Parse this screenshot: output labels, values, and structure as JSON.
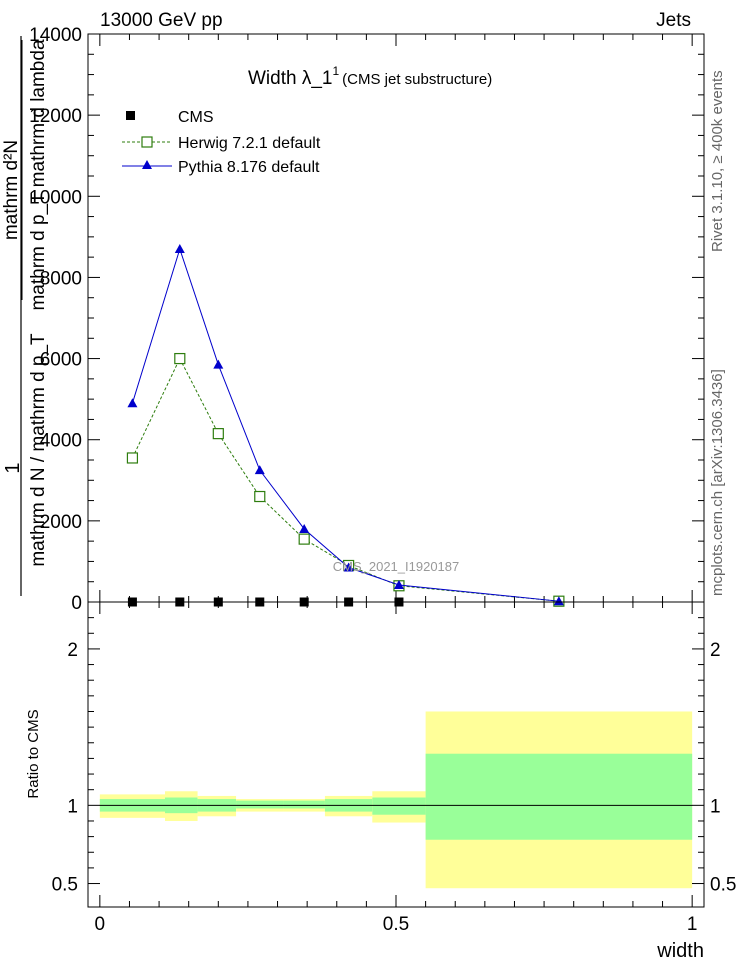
{
  "header": {
    "left": "13000 GeV pp",
    "right": "Jets"
  },
  "side_labels": {
    "rivet": "Rivet 3.1.10, ≥ 400k events",
    "mcplots": "mcplots.cern.ch [arXiv:1306.3436]"
  },
  "chart_data": [
    {
      "type": "line",
      "title": "Width λ_1",
      "title_superscript": "1",
      "subtitle": "(CMS jet substructure)",
      "watermark": "CMS_2021_I1920187",
      "ylabel_numerator": "mathrm d²N",
      "ylabel_denominator": "mathrm d p_T mathrm d lambda",
      "ylabel_prefix": "1",
      "ylabel_lower": "mathrm d N / mathrm d p_T",
      "ylim": [
        0,
        14000
      ],
      "yticks": [
        0,
        2000,
        4000,
        6000,
        8000,
        10000,
        12000,
        14000
      ],
      "ytick_labels": [
        "0",
        "2000",
        "4000",
        "6000",
        "8000",
        "10000",
        "12000",
        "14000"
      ],
      "xlim": [
        -0.02,
        1.02
      ],
      "legend_position": "top-left",
      "series": [
        {
          "name": "CMS",
          "color": "#000000",
          "marker": "square-filled",
          "x": [
            0.055,
            0.135,
            0.2,
            0.27,
            0.345,
            0.42,
            0.505,
            0.775
          ],
          "y": [
            0,
            0,
            0,
            0,
            0,
            0,
            0,
            0
          ]
        },
        {
          "name": "Herwig 7.2.1 default",
          "color": "#2e7d0e",
          "marker": "square-open",
          "linestyle": "dashed",
          "x": [
            0.055,
            0.135,
            0.2,
            0.27,
            0.345,
            0.42,
            0.505,
            0.775
          ],
          "y": [
            3550,
            6000,
            4150,
            2600,
            1550,
            900,
            400,
            20
          ]
        },
        {
          "name": "Pythia 8.176 default",
          "color": "#0000cc",
          "marker": "triangle",
          "linestyle": "solid",
          "x": [
            0.055,
            0.135,
            0.2,
            0.27,
            0.345,
            0.42,
            0.505,
            0.775
          ],
          "y": [
            4900,
            8700,
            5850,
            3250,
            1800,
            850,
            420,
            20
          ]
        }
      ]
    },
    {
      "type": "area",
      "ylabel": "Ratio to CMS",
      "xlabel": "width",
      "ylim": [
        0.35,
        2.3
      ],
      "yticks": [
        0.5,
        1,
        2
      ],
      "ytick_labels": [
        "0.5",
        "1",
        "2"
      ],
      "xlim": [
        -0.02,
        1.02
      ],
      "xticks": [
        0,
        0.5,
        1
      ],
      "xtick_labels": [
        "0",
        "0.5",
        "1"
      ],
      "reference_line": 1,
      "bands": {
        "bin_edges": [
          0.0,
          0.11,
          0.165,
          0.23,
          0.31,
          0.38,
          0.46,
          0.55,
          1.0
        ],
        "yellow_colour": "#ffff99",
        "green_colour": "#99ff99",
        "yellow_lo": [
          0.92,
          0.9,
          0.93,
          0.96,
          0.96,
          0.93,
          0.89,
          0.47
        ],
        "yellow_hi": [
          1.07,
          1.09,
          1.06,
          1.04,
          1.04,
          1.06,
          1.09,
          1.6
        ],
        "green_lo": [
          0.96,
          0.95,
          0.96,
          0.98,
          0.98,
          0.96,
          0.94,
          0.78
        ],
        "green_hi": [
          1.04,
          1.05,
          1.04,
          1.03,
          1.03,
          1.04,
          1.05,
          1.33
        ]
      }
    }
  ]
}
